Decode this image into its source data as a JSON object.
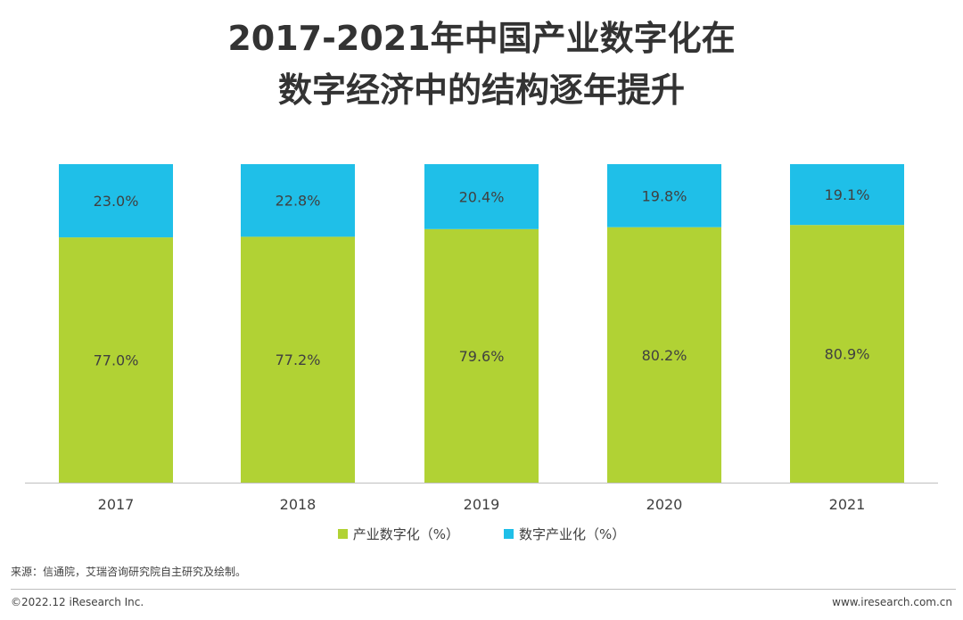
{
  "title": {
    "line1": "2017-2021年中国产业数字化在",
    "line2": "数字经济中的结构逐年提升"
  },
  "legend": [
    {
      "label": "产业数字化（%）",
      "color": "#b1d234"
    },
    {
      "label": "数字产业化（%）",
      "color": "#1fbfe8"
    }
  ],
  "chart_data": {
    "type": "bar",
    "stacked": true,
    "categories": [
      "2017",
      "2018",
      "2019",
      "2020",
      "2021"
    ],
    "series": [
      {
        "name": "产业数字化（%）",
        "values": [
          77.0,
          77.2,
          79.6,
          80.2,
          80.9
        ],
        "labels": [
          "77.0%",
          "77.2%",
          "79.6%",
          "80.2%",
          "80.9%"
        ],
        "color": "#b1d234"
      },
      {
        "name": "数字产业化（%）",
        "values": [
          23.0,
          22.8,
          20.4,
          19.8,
          19.1
        ],
        "labels": [
          "23.0%",
          "22.8%",
          "20.4%",
          "19.8%",
          "19.1%"
        ],
        "color": "#1fbfe8"
      }
    ],
    "ylim": [
      0,
      100
    ],
    "grid": false,
    "legend_position": "bottom"
  },
  "footer": {
    "source": "来源：信通院，艾瑞咨询研究院自主研究及绘制。",
    "copyright": "©2022.12 iResearch Inc.",
    "website": "www.iresearch.com.cn"
  }
}
